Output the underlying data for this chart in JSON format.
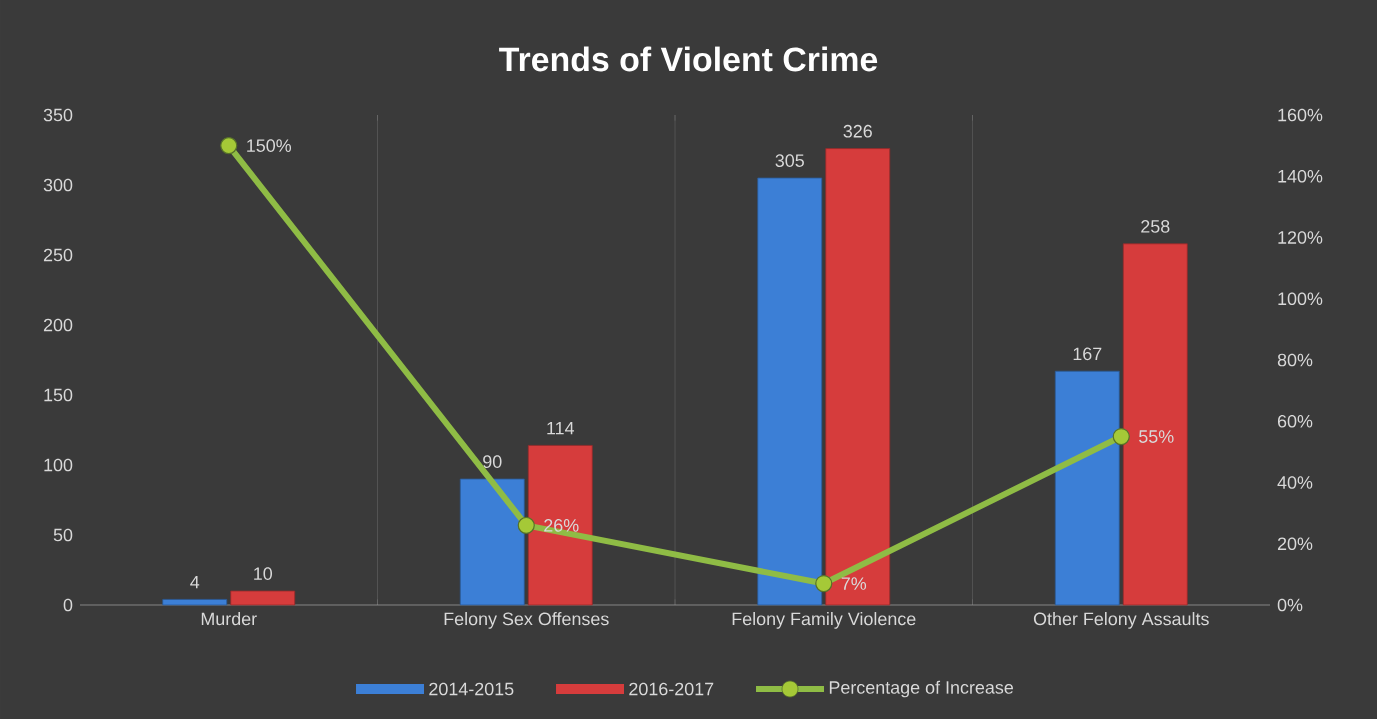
{
  "chart_data": {
    "type": "bar",
    "title": "Trends of Violent Crime",
    "categories": [
      "Murder",
      "Felony Sex Offenses",
      "Felony Family Violence",
      "Other Felony Assaults"
    ],
    "series": [
      {
        "name": "2014-2015",
        "color": "#3c7fd6",
        "values": [
          4,
          90,
          305,
          167
        ],
        "value_labels": [
          "4",
          "90",
          "305",
          "167"
        ]
      },
      {
        "name": "2016-2017",
        "color": "#d63c3c",
        "values": [
          10,
          114,
          326,
          258
        ],
        "value_labels": [
          "10",
          "114",
          "326",
          "258"
        ]
      },
      {
        "name": "Percentage of Increase",
        "type": "line",
        "axis": "y2",
        "color": "#8fbc45",
        "marker": "circle",
        "values": [
          150,
          26,
          7,
          55
        ],
        "value_labels": [
          "150%",
          "26%",
          "7%",
          "55%"
        ]
      }
    ],
    "ylim": [
      0,
      350
    ],
    "yticks": [
      0,
      50,
      100,
      150,
      200,
      250,
      300,
      350
    ],
    "y2lim": [
      0,
      160
    ],
    "y2ticks": [
      {
        "value": 0,
        "label": "0%"
      },
      {
        "value": 20,
        "label": "20%"
      },
      {
        "value": 40,
        "label": "40%"
      },
      {
        "value": 60,
        "label": "60%"
      },
      {
        "value": 80,
        "label": "80%"
      },
      {
        "value": 100,
        "label": "100%"
      },
      {
        "value": 120,
        "label": "120%"
      },
      {
        "value": 140,
        "label": "140%"
      },
      {
        "value": 160,
        "label": "160%"
      }
    ],
    "grid": "x",
    "legend": "bottom"
  }
}
